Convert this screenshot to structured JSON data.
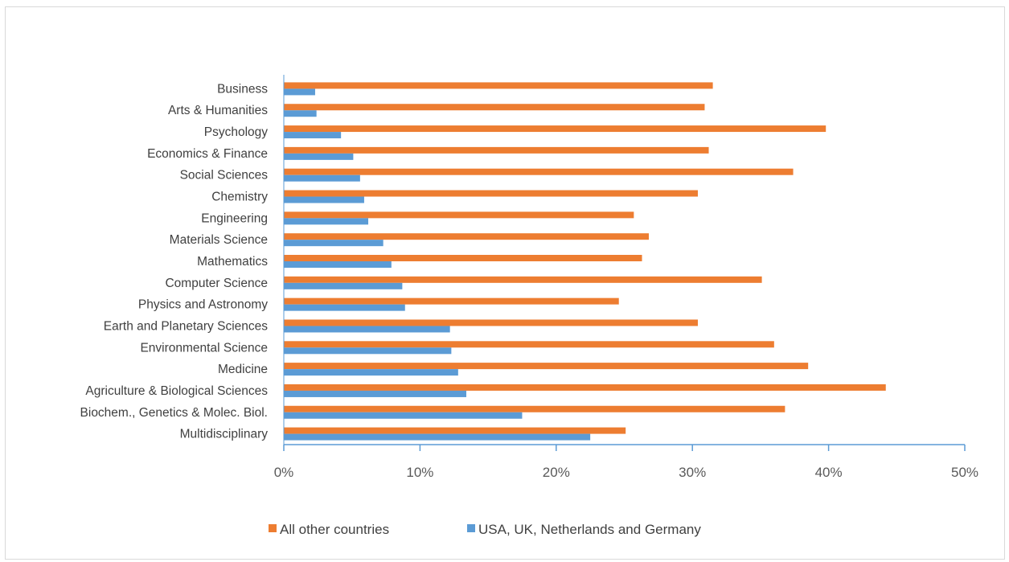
{
  "chart_data": {
    "type": "bar",
    "orientation": "horizontal",
    "categories": [
      "Business",
      "Arts & Humanities",
      "Psychology",
      "Economics & Finance",
      "Social Sciences",
      "Chemistry",
      "Engineering",
      "Materials Science",
      "Mathematics",
      "Computer Science",
      "Physics and Astronomy",
      "Earth and Planetary Sciences",
      "Environmental Science",
      "Medicine",
      "Agriculture & Biological Sciences",
      "Biochem., Genetics & Molec. Biol.",
      "Multidisciplinary"
    ],
    "series": [
      {
        "name": "All other countries",
        "color": "#ED7D31",
        "values": [
          31.5,
          30.9,
          39.8,
          31.2,
          37.4,
          30.4,
          25.7,
          26.8,
          26.3,
          35.1,
          24.6,
          30.4,
          36.0,
          38.5,
          44.2,
          36.8,
          25.1
        ]
      },
      {
        "name": "USA, UK, Netherlands and Germany",
        "color": "#5B9BD5",
        "values": [
          2.3,
          2.4,
          4.2,
          5.1,
          5.6,
          5.9,
          6.2,
          7.3,
          7.9,
          8.7,
          8.9,
          12.2,
          12.3,
          12.8,
          13.4,
          17.5,
          22.5
        ]
      }
    ],
    "xlim": [
      0,
      50
    ],
    "xticks": [
      "0%",
      "10%",
      "20%",
      "30%",
      "40%",
      "50%"
    ],
    "grid": false,
    "legend_position": "bottom",
    "title": "",
    "xlabel": "",
    "ylabel": ""
  }
}
